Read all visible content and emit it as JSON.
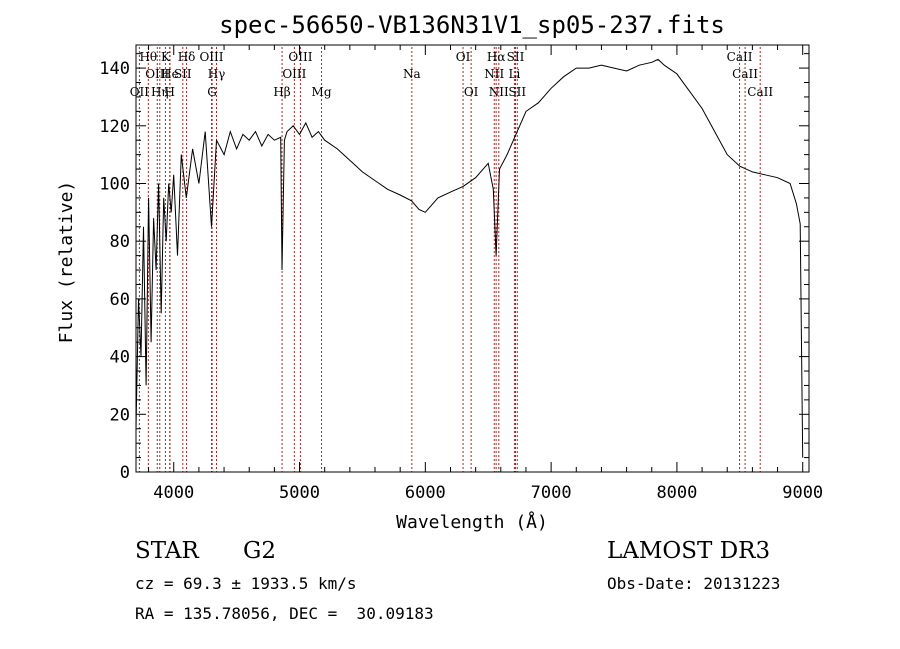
{
  "chart_data": {
    "type": "line",
    "title": "spec-56650-VB136N31V1_sp05-237.fits",
    "xlabel": "Wavelength (Å)",
    "ylabel": "Flux (relative)",
    "xlim": [
      3700,
      9050
    ],
    "ylim": [
      0,
      148
    ],
    "xticks": [
      4000,
      5000,
      6000,
      7000,
      8000,
      9000
    ],
    "yticks": [
      0,
      20,
      40,
      60,
      80,
      100,
      120,
      140
    ],
    "grid": false,
    "spectrum": {
      "name": "flux",
      "x": [
        3700,
        3720,
        3740,
        3760,
        3780,
        3800,
        3820,
        3840,
        3860,
        3880,
        3900,
        3920,
        3940,
        3960,
        3980,
        4000,
        4030,
        4060,
        4100,
        4150,
        4200,
        4250,
        4300,
        4340,
        4400,
        4450,
        4500,
        4550,
        4600,
        4650,
        4700,
        4750,
        4800,
        4850,
        4861,
        4880,
        4900,
        4950,
        5000,
        5050,
        5100,
        5150,
        5200,
        5300,
        5400,
        5500,
        5600,
        5700,
        5800,
        5890,
        5950,
        6000,
        6100,
        6200,
        6300,
        6400,
        6500,
        6540,
        6563,
        6590,
        6650,
        6700,
        6750,
        6800,
        6900,
        7000,
        7100,
        7200,
        7300,
        7400,
        7500,
        7600,
        7700,
        7800,
        7850,
        7900,
        8000,
        8100,
        8200,
        8300,
        8400,
        8500,
        8600,
        8700,
        8800,
        8900,
        8950,
        8980,
        9000
      ],
      "y": [
        15,
        60,
        40,
        85,
        30,
        95,
        45,
        88,
        70,
        100,
        55,
        95,
        80,
        100,
        90,
        103,
        75,
        110,
        95,
        112,
        100,
        118,
        85,
        115,
        110,
        118,
        112,
        117,
        115,
        118,
        113,
        117,
        115,
        116,
        70,
        115,
        118,
        120,
        117,
        121,
        116,
        118,
        115,
        112,
        108,
        104,
        101,
        98,
        96,
        94,
        91,
        90,
        95,
        97,
        99,
        102,
        107,
        98,
        75,
        105,
        110,
        115,
        120,
        125,
        128,
        133,
        137,
        140,
        140,
        141,
        140,
        139,
        141,
        142,
        143,
        141,
        138,
        132,
        126,
        118,
        110,
        106,
        104,
        103,
        102,
        100,
        93,
        86,
        5
      ]
    },
    "lines": [
      {
        "name": "OII",
        "x": 3727,
        "row": 3
      },
      {
        "name": "Hθ",
        "x": 3798,
        "row": 1
      },
      {
        "name": "OIII",
        "x": 3869,
        "row": 2
      },
      {
        "name": "Hη",
        "x": 3889,
        "row": 3
      },
      {
        "name": "K",
        "x": 3934,
        "row": 1
      },
      {
        "name": "He",
        "x": 3970,
        "row": 2
      },
      {
        "name": "H",
        "x": 3968,
        "row": 3
      },
      {
        "name": "SII",
        "x": 4072,
        "row": 2
      },
      {
        "name": "Hδ",
        "x": 4102,
        "row": 1
      },
      {
        "name": "OIII",
        "x": 4300,
        "row": 1
      },
      {
        "name": "Hγ",
        "x": 4340,
        "row": 2
      },
      {
        "name": "G",
        "x": 4305,
        "row": 3
      },
      {
        "name": "Hβ",
        "x": 4861,
        "row": 3
      },
      {
        "name": "OIII",
        "x": 4959,
        "row": 2
      },
      {
        "name": "OIII",
        "x": 5007,
        "row": 1
      },
      {
        "name": "Mg",
        "x": 5175,
        "row": 3
      },
      {
        "name": "Na",
        "x": 5893,
        "row": 2
      },
      {
        "name": "OI",
        "x": 6300,
        "row": 1
      },
      {
        "name": "OI",
        "x": 6364,
        "row": 3
      },
      {
        "name": "Hα",
        "x": 6563,
        "row": 1
      },
      {
        "name": "NII",
        "x": 6548,
        "row": 2
      },
      {
        "name": "NII",
        "x": 6584,
        "row": 3
      },
      {
        "name": "SII",
        "x": 6717,
        "row": 1
      },
      {
        "name": "Li",
        "x": 6708,
        "row": 2
      },
      {
        "name": "SII",
        "x": 6731,
        "row": 3
      },
      {
        "name": "CaII",
        "x": 8498,
        "row": 1
      },
      {
        "name": "CaII",
        "x": 8542,
        "row": 2
      },
      {
        "name": "CaII",
        "x": 8662,
        "row": 3
      }
    ]
  },
  "info": {
    "object_class": "STAR",
    "subclass": "G2",
    "survey": "LAMOST DR3",
    "cz": "cz = 69.3 ± 1933.5 km/s",
    "obs_date": "Obs-Date: 20131223",
    "coords": "RA = 135.78056, DEC =  30.09183"
  }
}
